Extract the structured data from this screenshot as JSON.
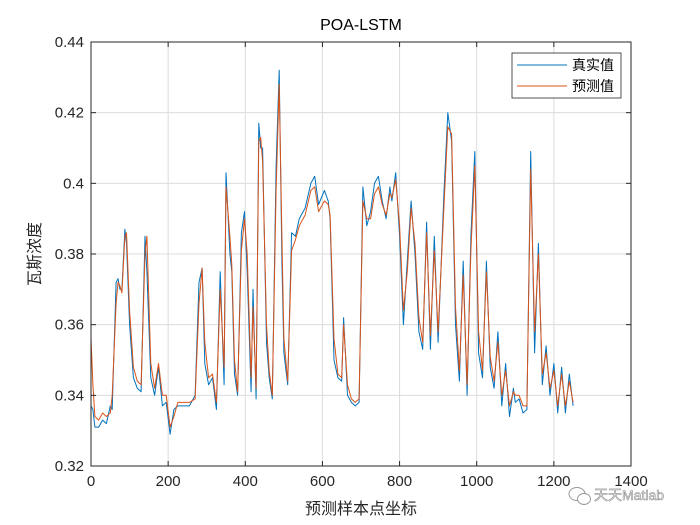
{
  "chart_data": {
    "type": "line",
    "title": "POA-LSTM",
    "xlabel": "预测样本点坐标",
    "ylabel": "瓦斯浓度",
    "xlim": [
      0,
      1400
    ],
    "ylim": [
      0.32,
      0.44
    ],
    "xticks": [
      0,
      200,
      400,
      600,
      800,
      1000,
      1200,
      1400
    ],
    "yticks": [
      0.32,
      0.34,
      0.36,
      0.38,
      0.4,
      0.42,
      0.44
    ],
    "ytick_labels": [
      "0.32",
      "0.34",
      "0.36",
      "0.38",
      "0.4",
      "0.42",
      "0.44"
    ],
    "grid": true,
    "legend_position": "top-right",
    "x": [
      0,
      5,
      10,
      20,
      30,
      40,
      50,
      55,
      65,
      70,
      75,
      80,
      88,
      92,
      100,
      110,
      120,
      130,
      140,
      145,
      155,
      165,
      175,
      185,
      195,
      205,
      215,
      225,
      240,
      255,
      270,
      280,
      288,
      295,
      305,
      315,
      325,
      335,
      345,
      350,
      360,
      365,
      372,
      380,
      390,
      398,
      405,
      415,
      420,
      428,
      435,
      440,
      445,
      455,
      462,
      470,
      480,
      488,
      495,
      500,
      510,
      520,
      530,
      540,
      555,
      570,
      580,
      590,
      605,
      615,
      620,
      630,
      640,
      650,
      655,
      665,
      675,
      685,
      695,
      705,
      715,
      725,
      735,
      745,
      755,
      765,
      775,
      780,
      790,
      800,
      810,
      820,
      830,
      840,
      850,
      860,
      870,
      880,
      890,
      900,
      915,
      925,
      935,
      945,
      955,
      965,
      975,
      985,
      995,
      1005,
      1015,
      1025,
      1035,
      1045,
      1055,
      1065,
      1075,
      1085,
      1095,
      1100,
      1110,
      1120,
      1130,
      1140,
      1150,
      1160,
      1170,
      1180,
      1190,
      1200,
      1210,
      1220,
      1230,
      1240,
      1250
    ],
    "series": [
      {
        "name": "真实值",
        "color": "#0072BD",
        "values": [
          0.337,
          0.336,
          0.331,
          0.331,
          0.333,
          0.332,
          0.337,
          0.336,
          0.372,
          0.373,
          0.37,
          0.37,
          0.387,
          0.383,
          0.36,
          0.345,
          0.342,
          0.341,
          0.385,
          0.375,
          0.345,
          0.34,
          0.348,
          0.337,
          0.338,
          0.329,
          0.336,
          0.337,
          0.337,
          0.337,
          0.34,
          0.372,
          0.376,
          0.349,
          0.343,
          0.345,
          0.336,
          0.375,
          0.343,
          0.403,
          0.38,
          0.375,
          0.346,
          0.34,
          0.386,
          0.392,
          0.375,
          0.341,
          0.37,
          0.339,
          0.417,
          0.41,
          0.41,
          0.355,
          0.345,
          0.339,
          0.405,
          0.432,
          0.378,
          0.352,
          0.343,
          0.386,
          0.385,
          0.39,
          0.393,
          0.4,
          0.402,
          0.394,
          0.398,
          0.395,
          0.39,
          0.35,
          0.345,
          0.344,
          0.362,
          0.34,
          0.338,
          0.337,
          0.338,
          0.399,
          0.388,
          0.392,
          0.4,
          0.402,
          0.395,
          0.39,
          0.399,
          0.395,
          0.403,
          0.385,
          0.36,
          0.378,
          0.395,
          0.38,
          0.358,
          0.353,
          0.389,
          0.353,
          0.385,
          0.355,
          0.397,
          0.42,
          0.412,
          0.36,
          0.344,
          0.378,
          0.34,
          0.385,
          0.409,
          0.352,
          0.345,
          0.378,
          0.348,
          0.342,
          0.358,
          0.337,
          0.349,
          0.334,
          0.342,
          0.338,
          0.339,
          0.335,
          0.336,
          0.409,
          0.352,
          0.383,
          0.343,
          0.354,
          0.34,
          0.349,
          0.335,
          0.348,
          0.335,
          0.346,
          0.337
        ]
      },
      {
        "name": "预测值",
        "color": "#D95319",
        "values": [
          0.356,
          0.343,
          0.334,
          0.333,
          0.335,
          0.334,
          0.335,
          0.34,
          0.366,
          0.372,
          0.371,
          0.369,
          0.385,
          0.386,
          0.364,
          0.348,
          0.344,
          0.343,
          0.38,
          0.385,
          0.349,
          0.342,
          0.349,
          0.34,
          0.34,
          0.331,
          0.334,
          0.338,
          0.338,
          0.338,
          0.339,
          0.366,
          0.376,
          0.355,
          0.345,
          0.346,
          0.338,
          0.37,
          0.348,
          0.399,
          0.385,
          0.377,
          0.35,
          0.341,
          0.381,
          0.39,
          0.38,
          0.345,
          0.365,
          0.342,
          0.412,
          0.413,
          0.406,
          0.36,
          0.347,
          0.34,
          0.398,
          0.428,
          0.385,
          0.356,
          0.344,
          0.381,
          0.384,
          0.388,
          0.391,
          0.398,
          0.399,
          0.392,
          0.395,
          0.394,
          0.391,
          0.356,
          0.346,
          0.345,
          0.36,
          0.343,
          0.339,
          0.338,
          0.339,
          0.395,
          0.39,
          0.39,
          0.397,
          0.399,
          0.394,
          0.391,
          0.397,
          0.396,
          0.401,
          0.388,
          0.364,
          0.375,
          0.393,
          0.383,
          0.362,
          0.355,
          0.386,
          0.357,
          0.381,
          0.358,
          0.393,
          0.416,
          0.414,
          0.365,
          0.347,
          0.374,
          0.343,
          0.381,
          0.405,
          0.358,
          0.347,
          0.375,
          0.351,
          0.344,
          0.355,
          0.34,
          0.347,
          0.337,
          0.341,
          0.34,
          0.34,
          0.337,
          0.337,
          0.404,
          0.358,
          0.38,
          0.346,
          0.352,
          0.342,
          0.347,
          0.337,
          0.346,
          0.337,
          0.344,
          0.338
        ]
      }
    ]
  },
  "watermark": "天天Matlab"
}
